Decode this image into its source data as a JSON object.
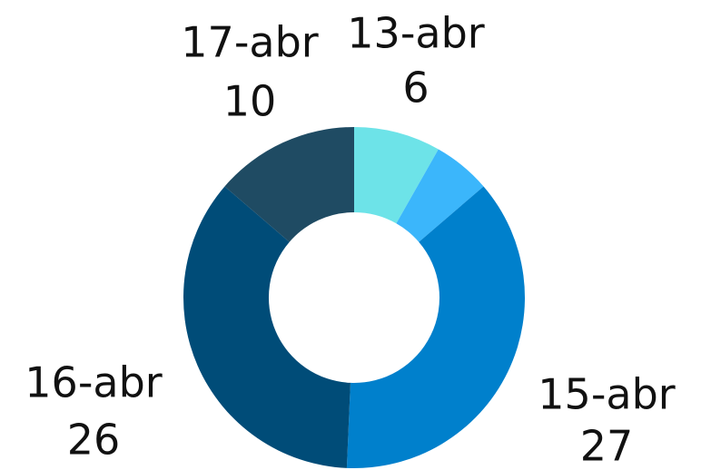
{
  "chart_data": {
    "type": "donut",
    "categories": [
      "13-abr",
      null,
      "15-abr",
      "16-abr",
      "17-abr"
    ],
    "values": [
      6,
      4,
      27,
      26,
      10
    ],
    "colors": [
      "#6de3e8",
      "#3bb6fb",
      "#0080cc",
      "#004c78",
      "#1f4b63"
    ]
  }
}
